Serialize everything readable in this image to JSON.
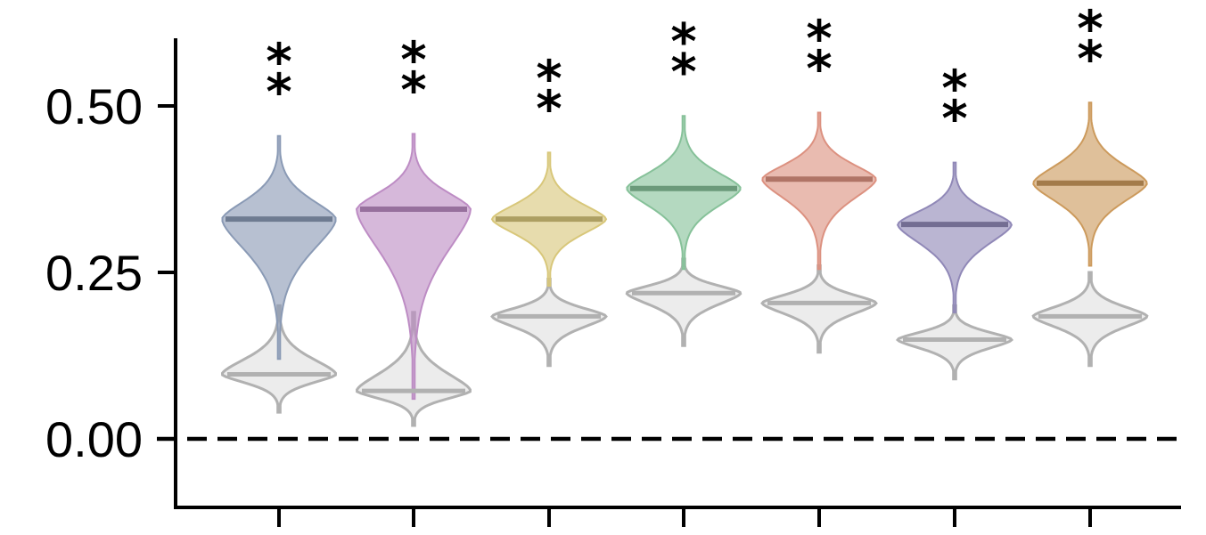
{
  "chart_data": {
    "type": "violin",
    "title": "",
    "xlabel": "",
    "ylabel": "",
    "ylim": [
      -0.1,
      0.6
    ],
    "y_ticks": [
      "0.00",
      "0.25",
      "0.50"
    ],
    "y_tick_values": [
      0.0,
      0.25,
      0.5
    ],
    "x_ticks": 7,
    "reference_line": {
      "y": 0.0,
      "style": "dashed"
    },
    "significance_marker": "**",
    "groups": [
      {
        "color": "#8a9ab5",
        "colored": {
          "median": 0.33,
          "min": 0.12,
          "max": 0.455
        },
        "baseline": {
          "median": 0.097,
          "min": 0.04,
          "max": 0.2
        }
      },
      {
        "color": "#bd8cc4",
        "colored": {
          "median": 0.345,
          "min": 0.06,
          "max": 0.458
        },
        "baseline": {
          "median": 0.072,
          "min": 0.02,
          "max": 0.19
        }
      },
      {
        "color": "#d8c77a",
        "colored": {
          "median": 0.33,
          "min": 0.23,
          "max": 0.43
        },
        "baseline": {
          "median": 0.184,
          "min": 0.11,
          "max": 0.24
        }
      },
      {
        "color": "#86c199",
        "colored": {
          "median": 0.376,
          "min": 0.255,
          "max": 0.485
        },
        "baseline": {
          "median": 0.219,
          "min": 0.14,
          "max": 0.27
        }
      },
      {
        "color": "#dc9180",
        "colored": {
          "median": 0.39,
          "min": 0.255,
          "max": 0.49
        },
        "baseline": {
          "median": 0.204,
          "min": 0.13,
          "max": 0.26
        }
      },
      {
        "color": "#9088b7",
        "colored": {
          "median": 0.322,
          "min": 0.19,
          "max": 0.415
        },
        "baseline": {
          "median": 0.149,
          "min": 0.09,
          "max": 0.2
        }
      },
      {
        "color": "#cc9a5c",
        "colored": {
          "median": 0.384,
          "min": 0.26,
          "max": 0.505
        },
        "baseline": {
          "median": 0.184,
          "min": 0.11,
          "max": 0.25
        }
      }
    ],
    "colors": {
      "baseline_fill": "#e7e7e7",
      "baseline_stroke": "#b1b1b1",
      "axis": "#000000"
    }
  }
}
